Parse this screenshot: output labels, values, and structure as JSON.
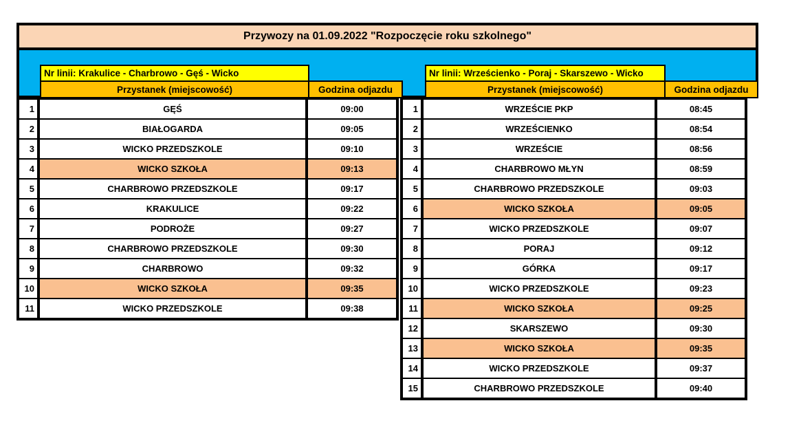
{
  "title": "Przywozy na 01.09.2022 \"Rozpoczęcie roku szkolnego\"",
  "colors": {
    "title_bg": "#FBD5B5",
    "band_bg": "#00B0F0",
    "line_label_bg": "#FFFF00",
    "column_header_bg": "#FFC000",
    "highlight_row_bg": "#FAC090",
    "cell_bg": "#FFFFFF",
    "border": "#000000"
  },
  "columns": {
    "stop": "Przystanek (miejscowość)",
    "time": "Godzina odjazdu"
  },
  "tables": [
    {
      "line_label": "Nr linii: Krakulice - Charbrowo - Gęś - Wicko",
      "rows": [
        {
          "no": 1,
          "stop": "GĘŚ",
          "time": "09:00",
          "highlight": false
        },
        {
          "no": 2,
          "stop": "BIAŁOGARDA",
          "time": "09:05",
          "highlight": false
        },
        {
          "no": 3,
          "stop": "WICKO PRZEDSZKOLE",
          "time": "09:10",
          "highlight": false
        },
        {
          "no": 4,
          "stop": "WICKO SZKOŁA",
          "time": "09:13",
          "highlight": true
        },
        {
          "no": 5,
          "stop": "CHARBROWO PRZEDSZKOLE",
          "time": "09:17",
          "highlight": false
        },
        {
          "no": 6,
          "stop": "KRAKULICE",
          "time": "09:22",
          "highlight": false
        },
        {
          "no": 7,
          "stop": "PODROŻE",
          "time": "09:27",
          "highlight": false
        },
        {
          "no": 8,
          "stop": "CHARBROWO PRZEDSZKOLE",
          "time": "09:30",
          "highlight": false
        },
        {
          "no": 9,
          "stop": "CHARBROWO",
          "time": "09:32",
          "highlight": false
        },
        {
          "no": 10,
          "stop": "WICKO SZKOŁA",
          "time": "09:35",
          "highlight": true
        },
        {
          "no": 11,
          "stop": "WICKO PRZEDSZKOLE",
          "time": "09:38",
          "highlight": false
        }
      ]
    },
    {
      "line_label": "Nr linii: Wrześcienko - Poraj - Skarszewo - Wicko",
      "rows": [
        {
          "no": 1,
          "stop": "WRZEŚCIE PKP",
          "time": "08:45",
          "highlight": false
        },
        {
          "no": 2,
          "stop": "WRZEŚCIENKO",
          "time": "08:54",
          "highlight": false
        },
        {
          "no": 3,
          "stop": "WRZEŚCIE",
          "time": "08:56",
          "highlight": false
        },
        {
          "no": 4,
          "stop": "CHARBROWO MŁYN",
          "time": "08:59",
          "highlight": false
        },
        {
          "no": 5,
          "stop": "CHARBROWO PRZEDSZKOLE",
          "time": "09:03",
          "highlight": false
        },
        {
          "no": 6,
          "stop": "WICKO SZKOŁA",
          "time": "09:05",
          "highlight": true
        },
        {
          "no": 7,
          "stop": "WICKO PRZEDSZKOLE",
          "time": "09:07",
          "highlight": false
        },
        {
          "no": 8,
          "stop": "PORAJ",
          "time": "09:12",
          "highlight": false
        },
        {
          "no": 9,
          "stop": "GÓRKA",
          "time": "09:17",
          "highlight": false
        },
        {
          "no": 10,
          "stop": "WICKO PRZEDSZKOLE",
          "time": "09:23",
          "highlight": false
        },
        {
          "no": 11,
          "stop": "WICKO SZKOŁA",
          "time": "09:25",
          "highlight": true
        },
        {
          "no": 12,
          "stop": "SKARSZEWO",
          "time": "09:30",
          "highlight": false
        },
        {
          "no": 13,
          "stop": "WICKO SZKOŁA",
          "time": "09:35",
          "highlight": true
        },
        {
          "no": 14,
          "stop": "WICKO PRZEDSZKOLE",
          "time": "09:37",
          "highlight": false
        },
        {
          "no": 15,
          "stop": "CHARBROWO PRZEDSZKOLE",
          "time": "09:40",
          "highlight": false
        }
      ]
    }
  ]
}
